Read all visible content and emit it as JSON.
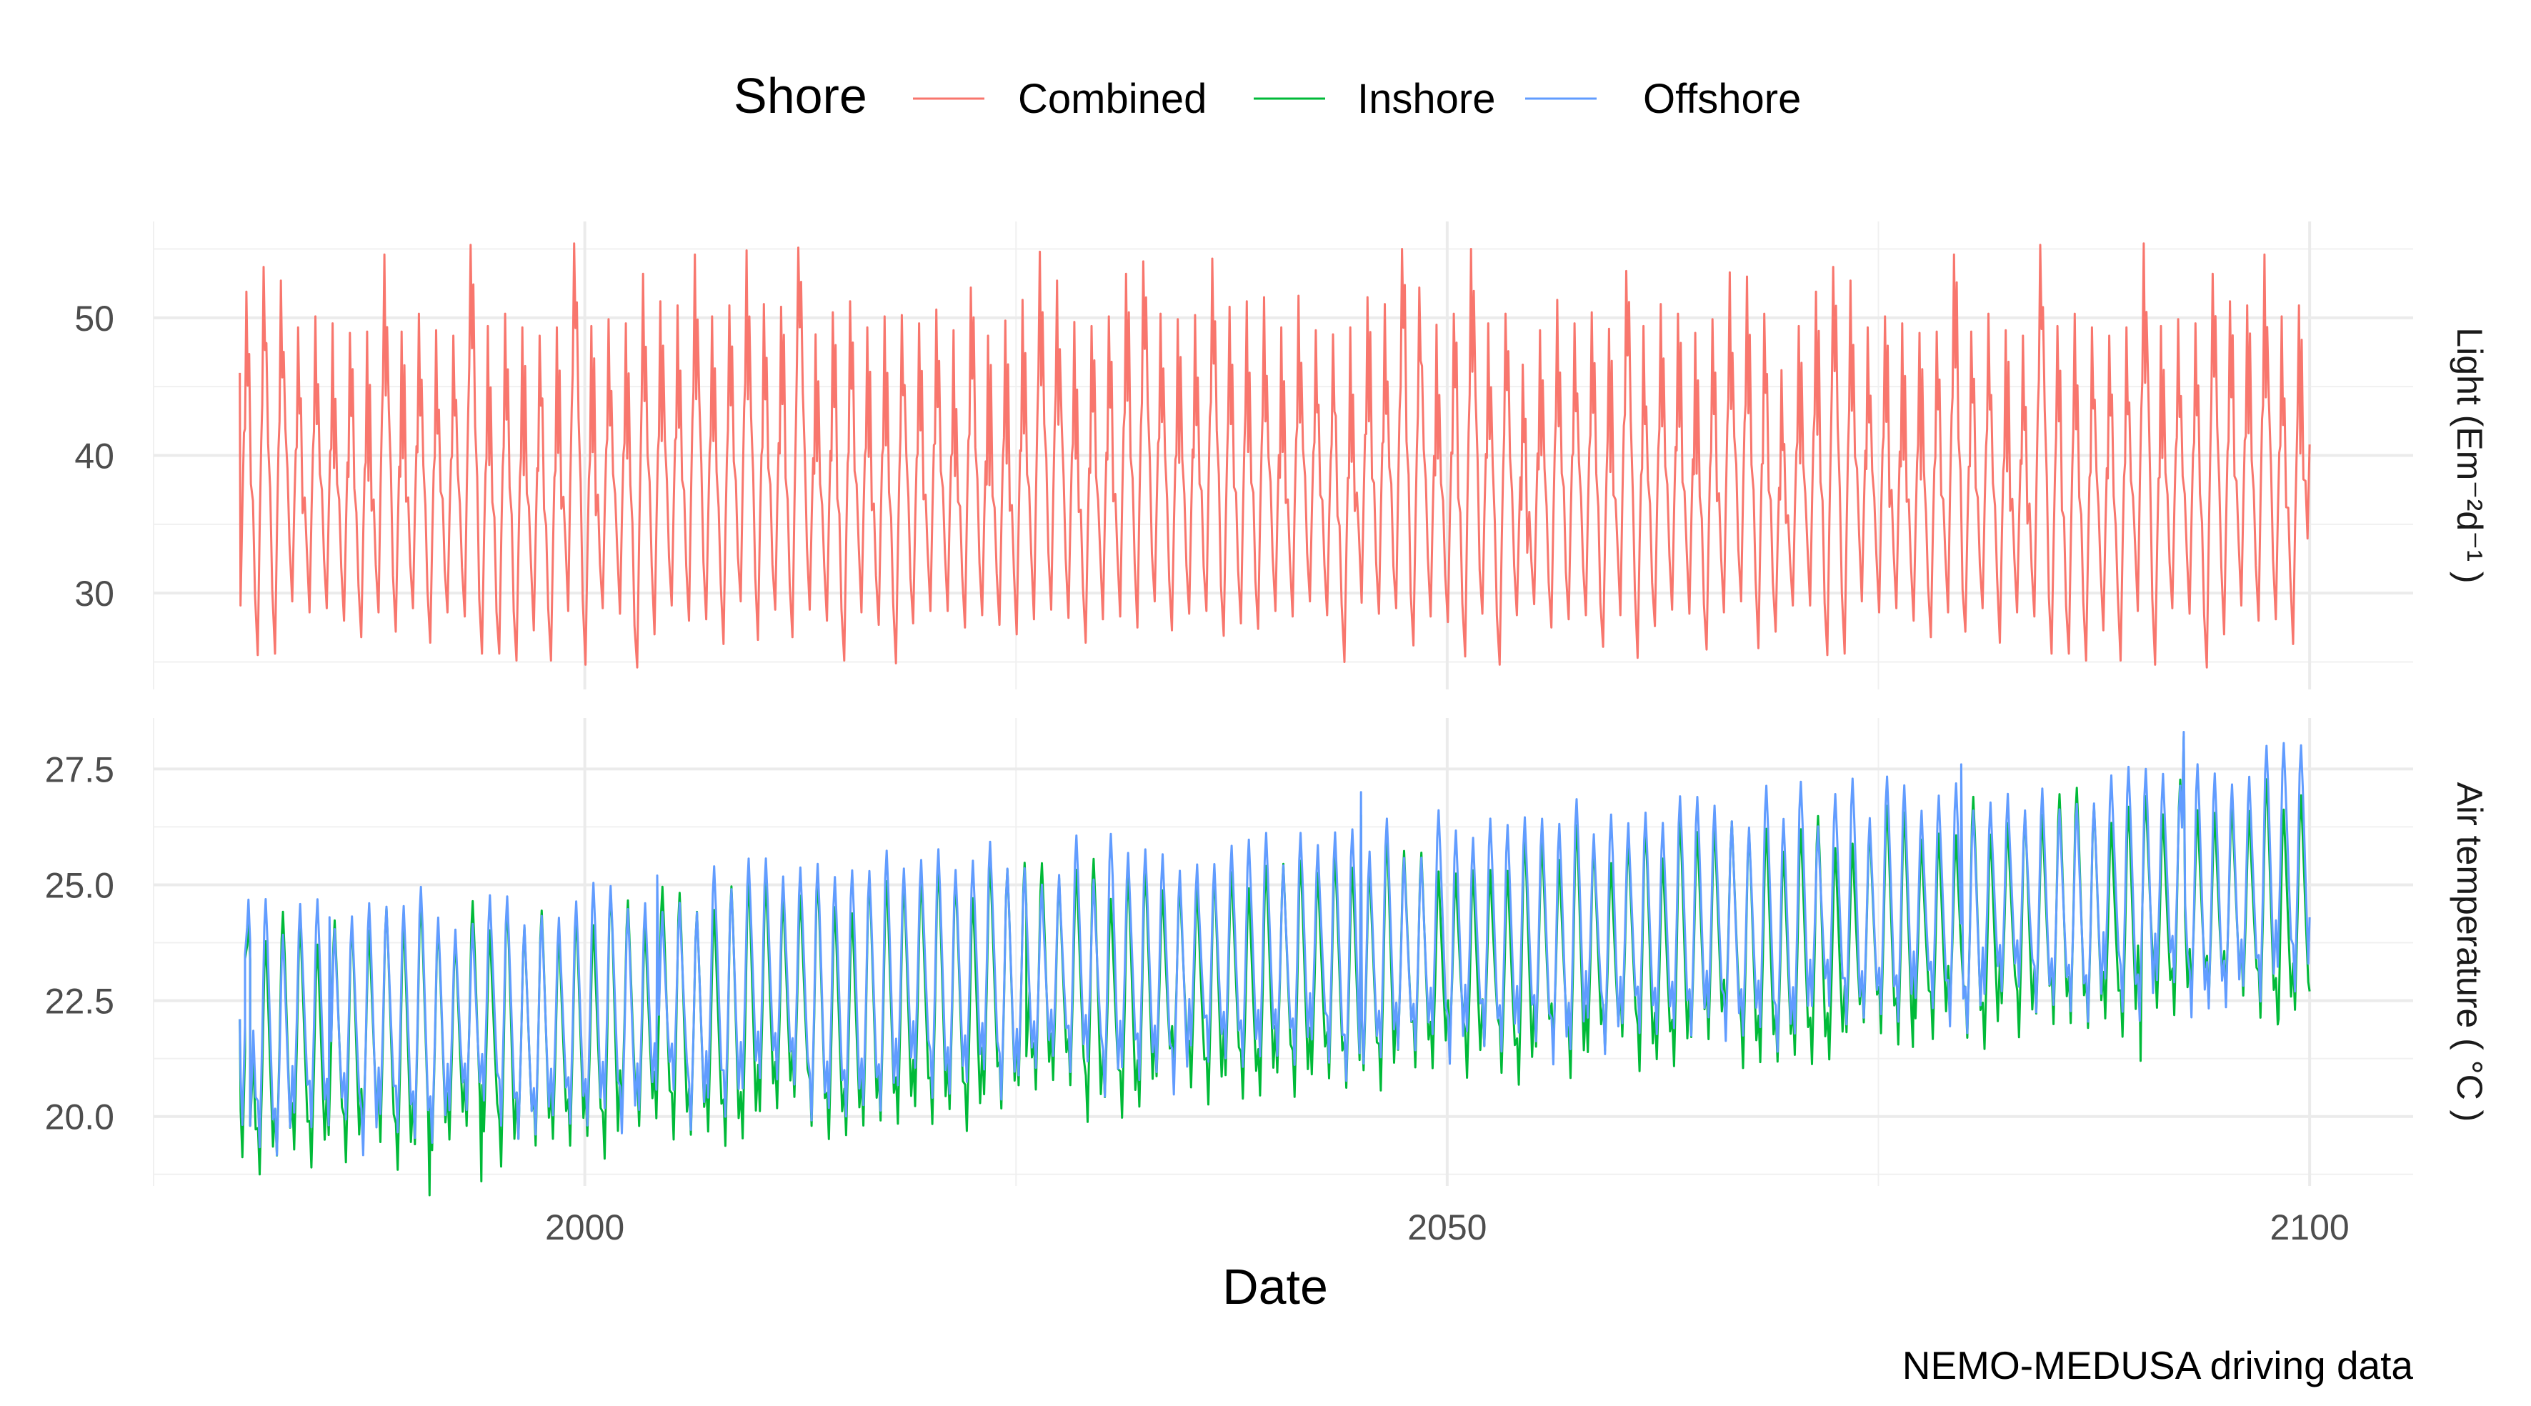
{
  "legend": {
    "title": "Shore",
    "position": "top",
    "items": [
      {
        "label": "Combined",
        "color": "#F8766D"
      },
      {
        "label": "Inshore",
        "color": "#00BA38"
      },
      {
        "label": "Offshore",
        "color": "#619CFF"
      }
    ]
  },
  "caption": "NEMO-MEDUSA driving data",
  "chart_data": {
    "type": "line",
    "xlabel": "Date",
    "x_axis": {
      "ticks": [
        "2000",
        "2050",
        "2100"
      ],
      "tick_values": [
        2000,
        2050,
        2100
      ],
      "range": [
        1975,
        2106
      ]
    },
    "grid": true,
    "panels": [
      {
        "strip": "Light (Em⁻²d⁻¹ )",
        "ylim": [
          23,
          57
        ],
        "y_ticks": [
          "30",
          "40",
          "50"
        ],
        "y_tick_values": [
          30,
          40,
          50
        ],
        "x_range": [
          1980,
          2100
        ],
        "seasonal_shape": "peak mid-year, trough at year boundary",
        "series": [
          {
            "name": "Combined",
            "annual_peaks": [
              51.9,
              53.7,
              52.7,
              49.3,
              50.1,
              49.6,
              48.9,
              49.0,
              54.6,
              49.0,
              50.3,
              49.1,
              48.7,
              55.3,
              49.4,
              50.3,
              49.3,
              48.7,
              49.3,
              55.4,
              49.4,
              49.9,
              49.6,
              53.2,
              51.2,
              50.9,
              54.6,
              50.1,
              50.9,
              54.9,
              51.0,
              50.8,
              55.1,
              48.8,
              50.4,
              51.2,
              49.3,
              50.1,
              50.2,
              49.6,
              50.6,
              49.1,
              52.2,
              48.7,
              49.8,
              51.3,
              54.8,
              52.7,
              49.7,
              49.4,
              50.1,
              53.2,
              54.1,
              50.3,
              49.9,
              50.2,
              54.3,
              50.8,
              51.2,
              51.5,
              49.3,
              51.6,
              49.1,
              48.8,
              49.3,
              51.5,
              51.0,
              55.0,
              52.2,
              49.5,
              50.3,
              55.0,
              49.6,
              50.3,
              46.6,
              49.1,
              51.3,
              49.6,
              50.4,
              49.2,
              53.4,
              49.4,
              51.0,
              50.3,
              48.9,
              49.9,
              53.3,
              53.0,
              50.3,
              46.2,
              49.4
            ],
            "annual_troughs": [
              29.1,
              25.5,
              25.6,
              29.4,
              28.6,
              28.9,
              28.0,
              26.8,
              28.6,
              27.2,
              28.9,
              26.4,
              28.6,
              28.3,
              25.6,
              25.6,
              25.1,
              27.3,
              25.1,
              28.7,
              24.8,
              28.9,
              28.5,
              24.6,
              27.0,
              29.1,
              28.0,
              28.1,
              26.3,
              29.4,
              26.6,
              28.8,
              26.8,
              28.8,
              28.0,
              25.1,
              28.6,
              27.7,
              24.9,
              27.8,
              28.7,
              28.7,
              27.5,
              28.4,
              27.7,
              27.0,
              28.1,
              28.8,
              28.2,
              26.4,
              28.1,
              28.3,
              27.5,
              29.4,
              27.3,
              28.5,
              28.7,
              26.9,
              27.8,
              27.4,
              28.7,
              28.3,
              29.4,
              28.4,
              25.0,
              29.3,
              28.5,
              28.9,
              26.2,
              28.3,
              27.9,
              25.4,
              28.5,
              24.8,
              28.4,
              29.2,
              27.5,
              28.1,
              28.4,
              26.1,
              28.4,
              25.3,
              27.6,
              28.8,
              28.5,
              25.9,
              28.6,
              29.4,
              26.0,
              27.2,
              29.1
            ],
            "start_value": 46.0,
            "end_value": 40.8
          }
        ]
      },
      {
        "strip": "Air temperature ( °C )",
        "ylim": [
          18.5,
          28.6
        ],
        "y_ticks": [
          "20.0",
          "22.5",
          "25.0",
          "27.5"
        ],
        "y_tick_values": [
          20.0,
          22.5,
          25.0,
          27.5
        ],
        "x_range": [
          1980,
          2100
        ],
        "seasonal_shape": "peak late summer, trough late winter",
        "series": [
          {
            "name": "Inshore",
            "trend_start": 19.2,
            "trend_end": 22.8,
            "summer_peak_start": 23.9,
            "summer_peak_end": 27.0,
            "key_points": [
              {
                "x": 1980.0,
                "y": 22.1
              },
              {
                "x": 1980.3,
                "y": 23.4
              },
              {
                "x": 1980.6,
                "y": 19.8
              },
              {
                "x": 1991.0,
                "y": 18.3
              },
              {
                "x": 1994.0,
                "y": 18.6
              },
              {
                "x": 2025.6,
                "y": 21.3
              },
              {
                "x": 2045.0,
                "y": 26.5
              },
              {
                "x": 2077.0,
                "y": 21.5
              },
              {
                "x": 2090.2,
                "y": 21.2
              },
              {
                "x": 2092.7,
                "y": 28.2
              },
              {
                "x": 2098.2,
                "y": 22.1
              },
              {
                "x": 2100.0,
                "y": 22.7
              }
            ]
          },
          {
            "name": "Offshore",
            "trend_start": 19.5,
            "trend_end": 22.8,
            "summer_peak_start": 24.2,
            "summer_peak_end": 27.6,
            "key_points": [
              {
                "x": 1980.0,
                "y": 22.1
              },
              {
                "x": 1980.3,
                "y": 23.5
              },
              {
                "x": 1980.6,
                "y": 19.8
              },
              {
                "x": 1985.2,
                "y": 24.3
              },
              {
                "x": 2004.2,
                "y": 25.2
              },
              {
                "x": 2045.0,
                "y": 27.0
              },
              {
                "x": 2079.8,
                "y": 27.6
              },
              {
                "x": 2092.7,
                "y": 28.3
              },
              {
                "x": 2100.0,
                "y": 24.3
              }
            ]
          }
        ]
      }
    ]
  }
}
